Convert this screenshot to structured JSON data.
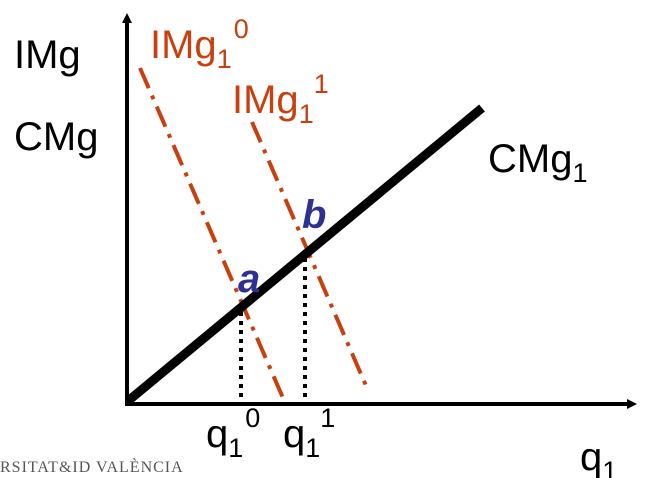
{
  "labels": {
    "y_axis_top": "IMg",
    "y_axis_bottom": "CMg",
    "x_axis": "q",
    "x_axis_sub": "1",
    "mr0_main": "IMg",
    "mr0_sub": "1",
    "mr0_sup": "0",
    "mr1_main": "IMg",
    "mr1_sub": "1",
    "mr1_sup": "1",
    "mc_main": "CMg",
    "mc_sub": "1",
    "point_a": "a",
    "point_b": "b",
    "q10_main": "q",
    "q10_sub": "1",
    "q10_sup": "0",
    "q11_main": "q",
    "q11_sub": "1",
    "q11_sup": "1"
  },
  "logo": {
    "text": "RSITAT&ID VALÈNCIA"
  },
  "colors": {
    "axis": "#000000",
    "marginal_cost": "#000000",
    "marginal_revenue": "#c8400f",
    "points": "#2e3192"
  }
}
